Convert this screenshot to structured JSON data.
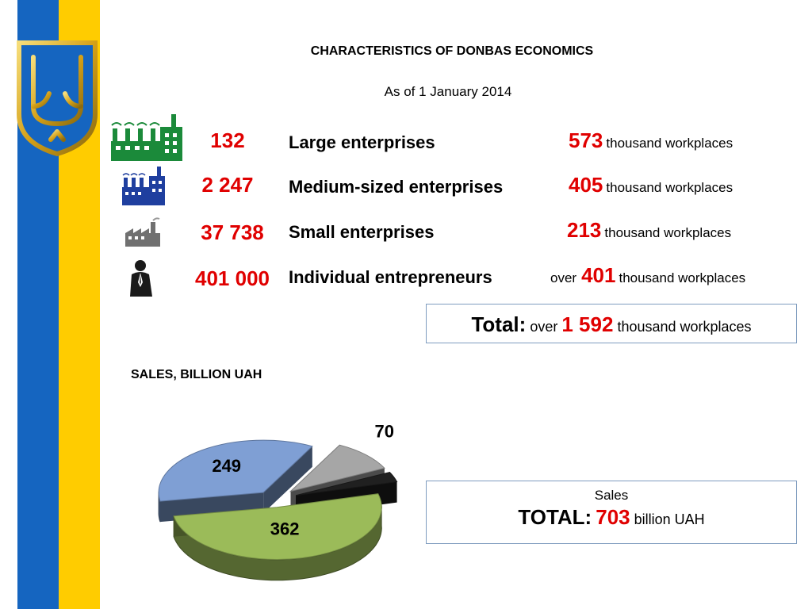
{
  "page": {
    "title": "CHARACTERISTICS OF DONBAS ECONOMICS",
    "subtitle": "As of 1 January 2014"
  },
  "colors": {
    "accent_red": "#e00000",
    "flag_blue": "#1565c0",
    "flag_yellow": "#ffcc00",
    "emblem_gold": "#d4a017"
  },
  "rows": [
    {
      "icon": "large-factory-icon",
      "count": "132",
      "label": "Large enterprises",
      "prefix": "",
      "workplaces": "573",
      "unit": "thousand workplaces"
    },
    {
      "icon": "medium-factory-icon",
      "count": "2 247",
      "label": "Medium-sized enterprises",
      "prefix": "",
      "workplaces": "405",
      "unit": "thousand workplaces"
    },
    {
      "icon": "small-factory-icon",
      "count": "37 738",
      "label": "Small enterprises",
      "prefix": "",
      "workplaces": "213",
      "unit": "thousand workplaces"
    },
    {
      "icon": "businessman-icon",
      "count": "401 000",
      "label": "Individual entrepreneurs",
      "prefix": "over",
      "workplaces": "401",
      "unit": "thousand workplaces"
    }
  ],
  "total": {
    "label": "Total:",
    "prefix": "over",
    "value": "1 592",
    "unit": "thousand workplaces"
  },
  "sales": {
    "title": "SALES, BILLION UAH",
    "caption": "Sales",
    "total_label": "TOTAL:",
    "total_value": "703",
    "total_unit": "billion UAH"
  },
  "chart_data": {
    "type": "pie",
    "title": "SALES, BILLION UAH",
    "exploded": true,
    "style": "3d",
    "slices": [
      {
        "value": 362,
        "color": "#9bbb59"
      },
      {
        "value": 249,
        "color": "#7f9fd4"
      },
      {
        "value": 70,
        "color": "#a6a6a6"
      },
      {
        "value": 22,
        "color": "#202020"
      }
    ]
  }
}
